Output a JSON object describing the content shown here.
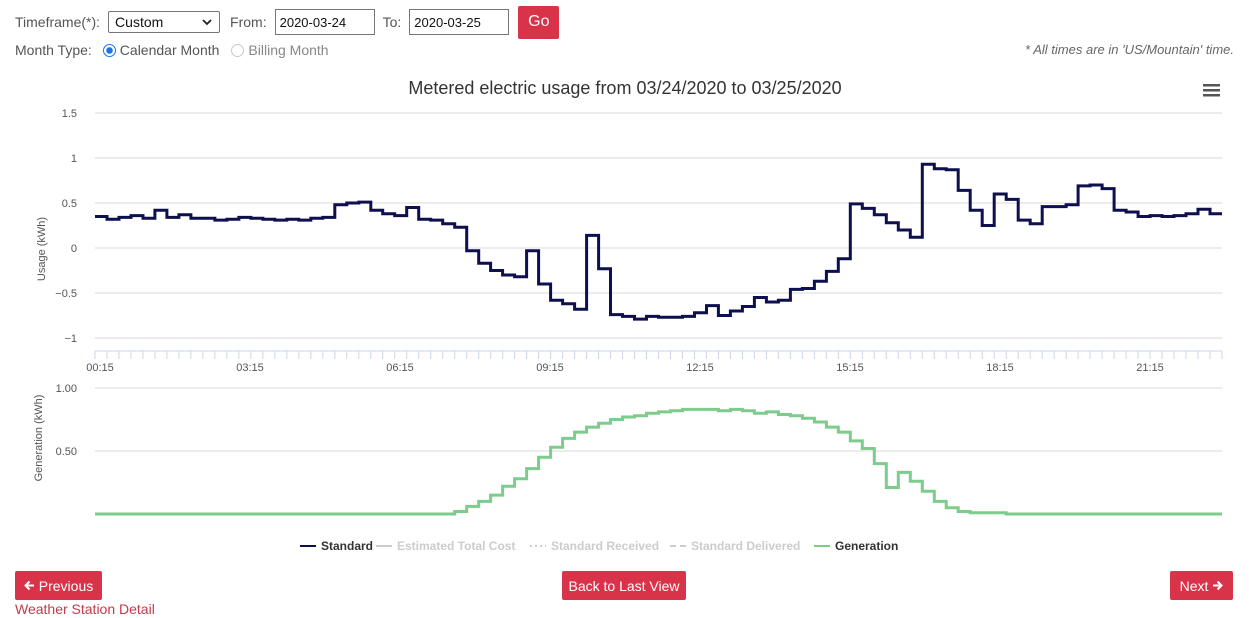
{
  "controls": {
    "timeframe_label": "Timeframe(*):",
    "timeframe_value": "Custom",
    "from_label": "From:",
    "from_value": "2020-03-24",
    "to_label": "To:",
    "to_value": "2020-03-25",
    "go_label": "Go",
    "month_type_label": "Month Type:",
    "month_options": [
      {
        "label": "Calendar Month",
        "selected": true
      },
      {
        "label": "Billing Month",
        "selected": false
      }
    ],
    "timezone_note": "* All times are in 'US/Mountain' time."
  },
  "buttons": {
    "previous": "Previous",
    "back": "Back to Last View",
    "next": "Next",
    "weather_link": "Weather Station Detail"
  },
  "colors": {
    "accent": "#d9334a",
    "standard": "#0d0f4f",
    "generation": "#7ccc8c",
    "grid": "#d9d9d9"
  },
  "chart_data": [
    {
      "type": "line",
      "title": "Metered electric usage from 03/24/2020 to 03/25/2020",
      "ylabel": "Usage (kWh)",
      "ylim": [
        -1,
        1.5
      ],
      "yticks": [
        "1.5",
        "1",
        "0.5",
        "0",
        "−0.5",
        "−1"
      ],
      "xticks": [
        "00:15",
        "03:15",
        "06:15",
        "09:15",
        "12:15",
        "15:15",
        "18:15",
        "21:15"
      ],
      "interval_minutes": 30,
      "series": [
        {
          "name": "Standard",
          "values": [
            0.35,
            0.32,
            0.34,
            0.36,
            0.33,
            0.42,
            0.34,
            0.37,
            0.33,
            0.33,
            0.31,
            0.32,
            0.34,
            0.33,
            0.32,
            0.31,
            0.32,
            0.31,
            0.33,
            0.34,
            0.48,
            0.5,
            0.51,
            0.42,
            0.38,
            0.36,
            0.45,
            0.32,
            0.31,
            0.27,
            0.23,
            -0.03,
            -0.17,
            -0.25,
            -0.3,
            -0.32,
            -0.03,
            -0.4,
            -0.58,
            -0.62,
            -0.68,
            0.14,
            -0.23,
            -0.74,
            -0.76,
            -0.79,
            -0.76,
            -0.77,
            -0.77,
            -0.76,
            -0.72,
            -0.64,
            -0.75,
            -0.7,
            -0.65,
            -0.55,
            -0.6,
            -0.58,
            -0.46,
            -0.45,
            -0.37,
            -0.26,
            -0.12,
            0.49,
            0.44,
            0.37,
            0.28,
            0.2,
            0.12,
            0.93,
            0.88,
            0.87,
            0.64,
            0.42,
            0.25,
            0.6,
            0.54,
            0.31,
            0.27,
            0.46,
            0.46,
            0.48,
            0.69,
            0.7,
            0.66,
            0.42,
            0.4,
            0.35,
            0.36,
            0.35,
            0.36,
            0.38,
            0.43,
            0.38
          ]
        },
        {
          "name": "Estimated Total Cost",
          "values": []
        },
        {
          "name": "Standard Received",
          "values": []
        },
        {
          "name": "Standard Delivered",
          "values": []
        }
      ],
      "legend": "bottom-center",
      "grid": true
    },
    {
      "type": "line",
      "ylabel": "Generation (kWh)",
      "ylim": [
        0,
        1.0
      ],
      "yticks": [
        "1.00",
        "0.50"
      ],
      "interval_minutes": 30,
      "series": [
        {
          "name": "Generation",
          "values": [
            0,
            0,
            0,
            0,
            0,
            0,
            0,
            0,
            0,
            0,
            0,
            0,
            0,
            0,
            0,
            0,
            0,
            0,
            0,
            0,
            0,
            0,
            0,
            0,
            0,
            0,
            0,
            0,
            0,
            0,
            0.02,
            0.06,
            0.1,
            0.15,
            0.22,
            0.28,
            0.36,
            0.45,
            0.53,
            0.6,
            0.65,
            0.69,
            0.72,
            0.75,
            0.77,
            0.78,
            0.8,
            0.81,
            0.82,
            0.83,
            0.83,
            0.83,
            0.82,
            0.83,
            0.82,
            0.8,
            0.81,
            0.79,
            0.78,
            0.76,
            0.73,
            0.69,
            0.65,
            0.58,
            0.52,
            0.4,
            0.21,
            0.33,
            0.26,
            0.18,
            0.1,
            0.05,
            0.02,
            0.01,
            0.01,
            0.01,
            0,
            0,
            0,
            0,
            0,
            0,
            0,
            0,
            0,
            0,
            0,
            0,
            0,
            0,
            0,
            0,
            0,
            0
          ]
        }
      ],
      "legend": "bottom-center",
      "grid": true
    }
  ]
}
